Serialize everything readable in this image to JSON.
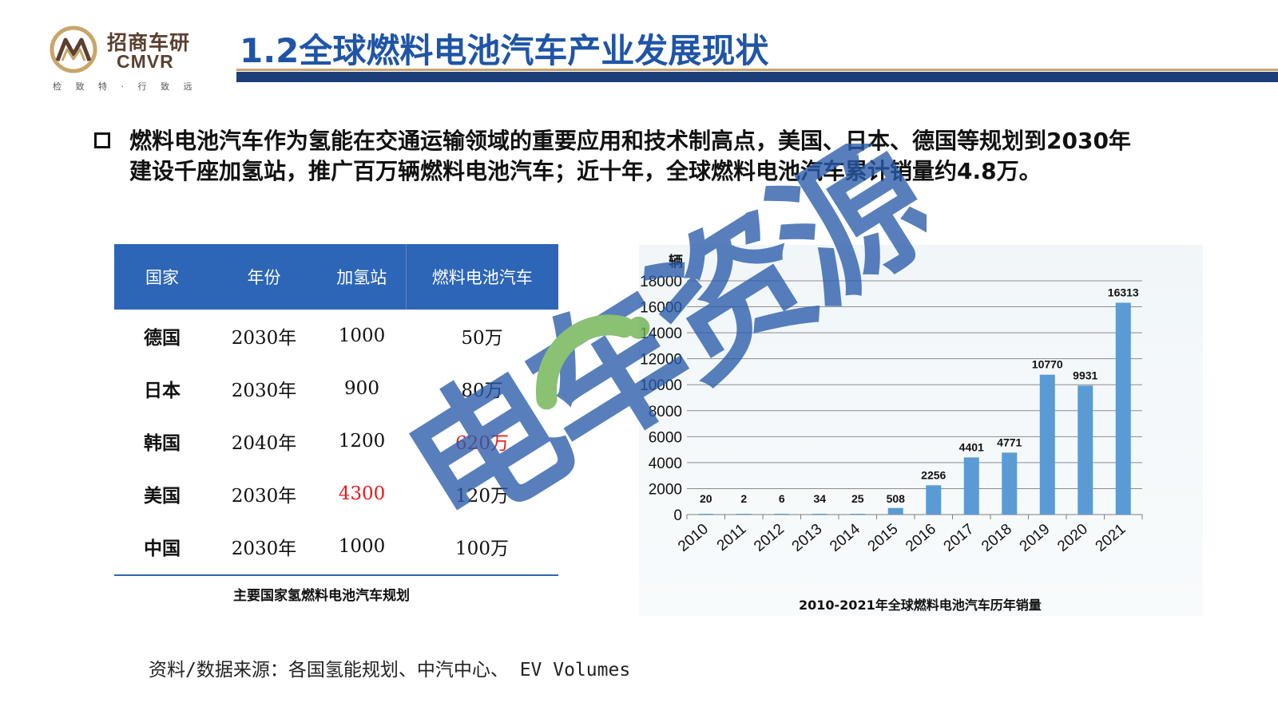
{
  "header": {
    "logo_cn": "招商车研",
    "logo_en": "CMVR",
    "logo_slogan": "检 致 特 · 行 致 远",
    "title": "1.2全球燃料电池汽车产业发展现状"
  },
  "bullet": {
    "line1": "燃料电池汽车作为氢能在交通运输领域的重要应用和技术制高点，美国、日本、德国等规划到2030年",
    "line2": "建设千座加氢站，推广百万辆燃料电池汽车；近十年，全球燃料电池汽车累计销量约4.8万。"
  },
  "table": {
    "headers": [
      "国家",
      "年份",
      "加氢站",
      "燃料电池汽车"
    ],
    "rows": [
      {
        "country": "德国",
        "year": "2030年",
        "stations": "1000",
        "vehicles": "50万"
      },
      {
        "country": "日本",
        "year": "2030年",
        "stations": "900",
        "vehicles": "80万"
      },
      {
        "country": "韩国",
        "year": "2040年",
        "stations": "1200",
        "vehicles": "620万"
      },
      {
        "country": "美国",
        "year": "2030年",
        "stations": "4300",
        "vehicles": "120万"
      },
      {
        "country": "中国",
        "year": "2030年",
        "stations": "1000",
        "vehicles": "100万"
      }
    ],
    "caption": "主要国家氢燃料电池汽车规划",
    "highlight_color": "#e8191c"
  },
  "chart_data": {
    "type": "bar",
    "categories": [
      "2010",
      "2011",
      "2012",
      "2013",
      "2014",
      "2015",
      "2016",
      "2017",
      "2018",
      "2019",
      "2020",
      "2021"
    ],
    "values": [
      20,
      2,
      6,
      34,
      25,
      508,
      2256,
      4401,
      4771,
      10770,
      9931,
      16313
    ],
    "data_labels": [
      "20",
      "2",
      "6",
      "34",
      "25",
      "508",
      "2256",
      "4401",
      "4771",
      "10770",
      "9931",
      "16313"
    ],
    "ylabel": "辆",
    "yticks": [
      "0",
      "2000",
      "4000",
      "6000",
      "8000",
      "10000",
      "12000",
      "14000",
      "16000",
      "18000"
    ],
    "ylim": [
      0,
      18000
    ],
    "grid": true,
    "bar_color": "#5b9bd5",
    "caption": "2010-2021年全球燃料电池汽车历年销量"
  },
  "source": "资料/数据来源：各国氢能规划、中汽中心、 EV Volumes",
  "watermark": {
    "text": "电车资源",
    "colors": [
      "#2a5caa",
      "#6ab04c"
    ]
  }
}
